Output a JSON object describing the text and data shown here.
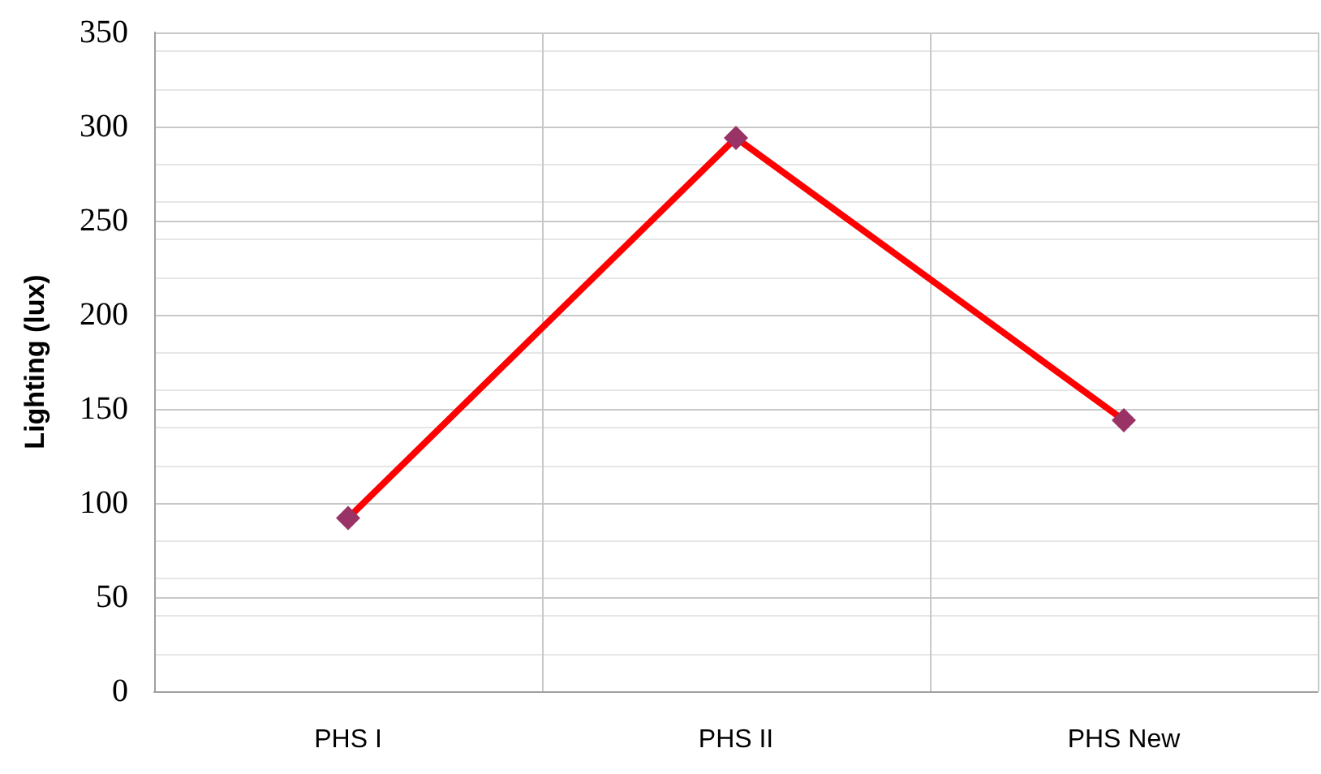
{
  "chart_data": {
    "type": "line",
    "ylabel": "Lighting (lux)",
    "categories": [
      "PHS I",
      "PHS II",
      "PHS New"
    ],
    "series": [
      {
        "color": "#ff0000",
        "colors": [
          "#993366",
          "#993366",
          "#993366"
        ],
        "values": [
          92,
          294,
          144
        ]
      }
    ],
    "ylim": [
      0,
      350
    ],
    "yticks": [
      0,
      50,
      100,
      150,
      200,
      250,
      300,
      350
    ],
    "grid": true,
    "marker": "diamond",
    "line_style": "solid"
  }
}
